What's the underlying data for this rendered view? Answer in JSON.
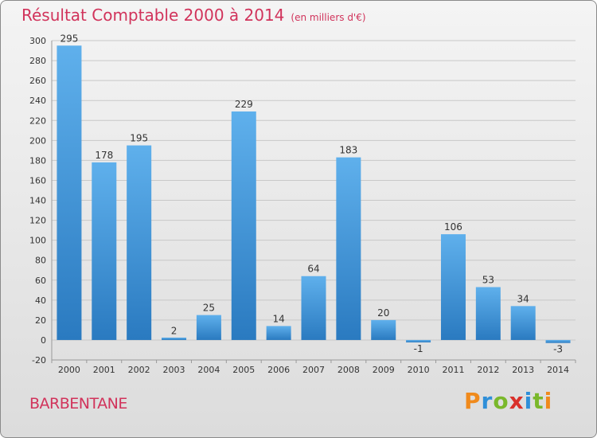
{
  "title": "Résultat Comptable 2000 à 2014",
  "unit": "(en milliers d'€)",
  "commune": "BARBENTANE",
  "logo": {
    "letters": [
      "P",
      "r",
      "o",
      "x",
      "i",
      "t",
      "i"
    ],
    "colors": [
      "#f08a1c",
      "#2f8fd8",
      "#7ab82b",
      "#d9302a",
      "#2f8fd8",
      "#7ab82b",
      "#f08a1c"
    ]
  },
  "colors": {
    "title": "#d1335b",
    "bar_light": "#5fb0ec",
    "bar_dark": "#2a7ac0",
    "grid": "#c8c8c8",
    "text": "#333333"
  },
  "chart_data": {
    "type": "bar",
    "title": "Résultat Comptable 2000 à 2014",
    "categories": [
      "2000",
      "2001",
      "2002",
      "2003",
      "2004",
      "2005",
      "2006",
      "2007",
      "2008",
      "2009",
      "2010",
      "2011",
      "2012",
      "2013",
      "2014"
    ],
    "values": [
      295,
      178,
      195,
      2,
      25,
      229,
      14,
      64,
      183,
      20,
      -1,
      106,
      53,
      34,
      -3
    ],
    "value_labels": [
      "295",
      "178",
      "195",
      "2",
      "25",
      "229",
      "14",
      "64",
      "183",
      "20",
      "-1",
      "106",
      "53",
      "34",
      "-3"
    ],
    "ylim": [
      -20,
      300
    ],
    "yticks": [
      -20,
      0,
      20,
      40,
      60,
      80,
      100,
      120,
      140,
      160,
      180,
      200,
      220,
      240,
      260,
      280,
      300
    ],
    "grid": true
  }
}
